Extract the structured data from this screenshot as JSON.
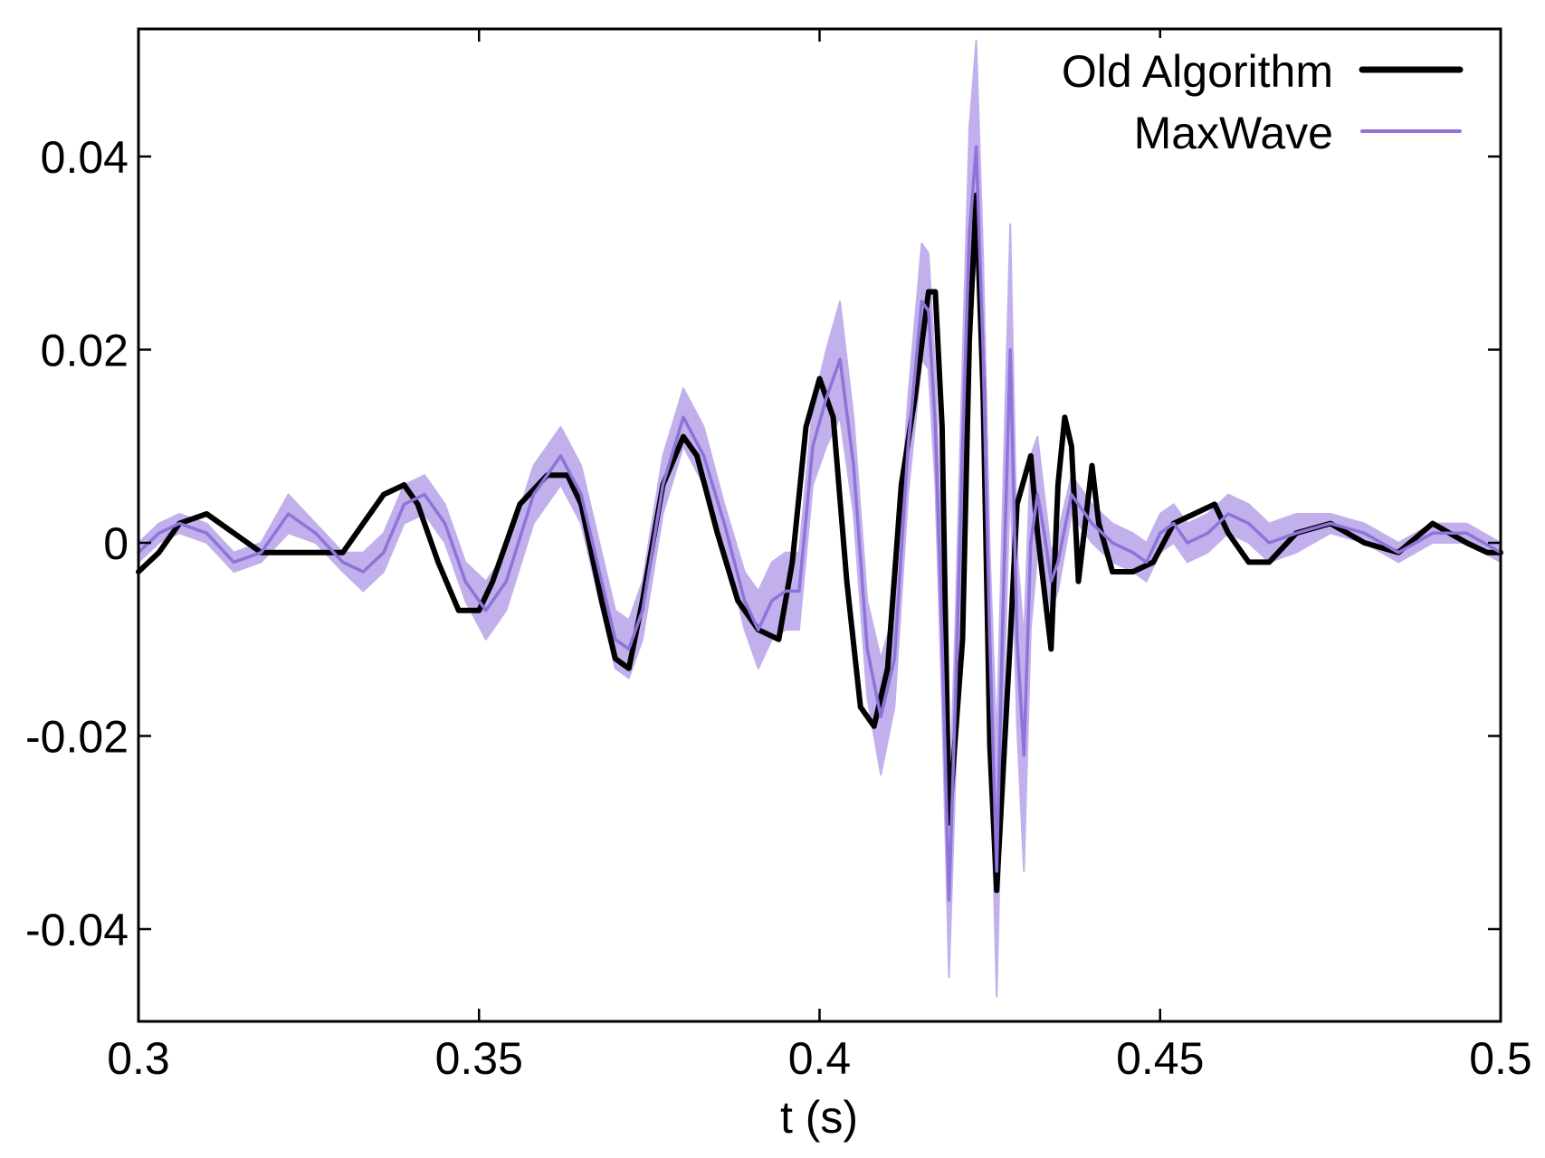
{
  "chart_data": {
    "type": "line",
    "title": "",
    "xlabel": "t (s)",
    "ylabel": "",
    "xlim": [
      0.3,
      0.5
    ],
    "ylim": [
      -0.05,
      0.052
    ],
    "xticks": [
      0.3,
      0.35,
      0.4,
      0.45,
      0.5
    ],
    "xtick_labels": [
      "0.3",
      "0.35",
      "0.4",
      "0.45",
      "0.5"
    ],
    "yticks": [
      -0.04,
      -0.02,
      0,
      0.02,
      0.04
    ],
    "ytick_labels": [
      "-0.04",
      "-0.02",
      "0",
      "0.02",
      "0.04"
    ],
    "grid": false,
    "legend_position": "top-right",
    "series": [
      {
        "name": "Old Algorithm",
        "color": "#000000",
        "style": "thick-line",
        "x": [
          0.3,
          0.303,
          0.306,
          0.31,
          0.314,
          0.318,
          0.322,
          0.326,
          0.33,
          0.333,
          0.336,
          0.339,
          0.341,
          0.344,
          0.347,
          0.35,
          0.352,
          0.356,
          0.36,
          0.363,
          0.365,
          0.368,
          0.37,
          0.372,
          0.374,
          0.377,
          0.38,
          0.382,
          0.385,
          0.388,
          0.391,
          0.394,
          0.396,
          0.398,
          0.4,
          0.402,
          0.404,
          0.406,
          0.408,
          0.41,
          0.412,
          0.414,
          0.416,
          0.417,
          0.418,
          0.419,
          0.421,
          0.422,
          0.423,
          0.424,
          0.425,
          0.426,
          0.428,
          0.429,
          0.431,
          0.432,
          0.434,
          0.435,
          0.436,
          0.437,
          0.438,
          0.44,
          0.441,
          0.443,
          0.446,
          0.449,
          0.452,
          0.455,
          0.458,
          0.46,
          0.463,
          0.466,
          0.47,
          0.475,
          0.48,
          0.485,
          0.49,
          0.495,
          0.498,
          0.5
        ],
        "y": [
          -0.003,
          -0.001,
          0.002,
          0.003,
          0.001,
          -0.001,
          -0.001,
          -0.001,
          -0.001,
          0.002,
          0.005,
          0.006,
          0.004,
          -0.002,
          -0.007,
          -0.007,
          -0.004,
          0.004,
          0.007,
          0.007,
          0.004,
          -0.006,
          -0.012,
          -0.013,
          -0.006,
          0.006,
          0.011,
          0.009,
          0.001,
          -0.006,
          -0.009,
          -0.01,
          -0.002,
          0.012,
          0.017,
          0.013,
          -0.004,
          -0.017,
          -0.019,
          -0.013,
          0.006,
          0.015,
          0.026,
          0.026,
          0.012,
          -0.029,
          -0.01,
          0.021,
          0.036,
          0.016,
          -0.021,
          -0.036,
          -0.01,
          0.004,
          0.009,
          0.001,
          -0.011,
          0.006,
          0.013,
          0.01,
          -0.004,
          0.008,
          0.002,
          -0.003,
          -0.003,
          -0.002,
          0.002,
          0.003,
          0.004,
          0.001,
          -0.002,
          -0.002,
          0.001,
          0.002,
          0.0,
          -0.001,
          0.002,
          0.0,
          -0.001,
          -0.001
        ]
      },
      {
        "name": "MaxWave",
        "color": "#8f73d9",
        "band_color": "#c1b0ec",
        "style": "thin-line-with-band",
        "x": [
          0.3,
          0.303,
          0.306,
          0.31,
          0.314,
          0.318,
          0.322,
          0.326,
          0.33,
          0.333,
          0.336,
          0.339,
          0.342,
          0.345,
          0.348,
          0.351,
          0.354,
          0.358,
          0.362,
          0.365,
          0.368,
          0.37,
          0.372,
          0.374,
          0.377,
          0.38,
          0.383,
          0.386,
          0.389,
          0.391,
          0.393,
          0.395,
          0.397,
          0.399,
          0.401,
          0.403,
          0.405,
          0.407,
          0.409,
          0.411,
          0.413,
          0.415,
          0.416,
          0.417,
          0.418,
          0.419,
          0.42,
          0.421,
          0.422,
          0.423,
          0.424,
          0.425,
          0.426,
          0.427,
          0.428,
          0.429,
          0.43,
          0.431,
          0.432,
          0.433,
          0.434,
          0.435,
          0.437,
          0.44,
          0.443,
          0.446,
          0.448,
          0.45,
          0.452,
          0.454,
          0.457,
          0.46,
          0.463,
          0.466,
          0.47,
          0.475,
          0.48,
          0.485,
          0.49,
          0.495,
          0.5
        ],
        "y": [
          -0.001,
          0.001,
          0.002,
          0.001,
          -0.002,
          -0.001,
          0.003,
          0.001,
          -0.002,
          -0.003,
          -0.001,
          0.004,
          0.005,
          0.002,
          -0.004,
          -0.007,
          -0.004,
          0.005,
          0.009,
          0.005,
          -0.004,
          -0.01,
          -0.011,
          -0.007,
          0.006,
          0.013,
          0.009,
          0.002,
          -0.006,
          -0.009,
          -0.006,
          -0.005,
          -0.005,
          0.01,
          0.015,
          0.019,
          0.008,
          -0.011,
          -0.018,
          -0.012,
          0.01,
          0.025,
          0.024,
          0.012,
          -0.01,
          -0.037,
          -0.015,
          0.01,
          0.032,
          0.041,
          0.02,
          -0.01,
          -0.034,
          -0.005,
          0.02,
          -0.01,
          -0.022,
          0.0,
          0.005,
          0.001,
          -0.004,
          -0.002,
          0.005,
          0.002,
          0.0,
          -0.001,
          -0.002,
          0.001,
          0.002,
          0.0,
          0.001,
          0.003,
          0.002,
          0.0,
          0.001,
          0.002,
          0.001,
          -0.001,
          0.001,
          0.001,
          -0.001
        ],
        "band_half_width": [
          0.001,
          0.001,
          0.001,
          0.001,
          0.001,
          0.001,
          0.002,
          0.001,
          0.001,
          0.002,
          0.002,
          0.002,
          0.002,
          0.002,
          0.002,
          0.003,
          0.003,
          0.003,
          0.003,
          0.003,
          0.003,
          0.003,
          0.003,
          0.003,
          0.003,
          0.003,
          0.003,
          0.002,
          0.003,
          0.004,
          0.004,
          0.004,
          0.004,
          0.004,
          0.005,
          0.006,
          0.005,
          0.005,
          0.006,
          0.005,
          0.005,
          0.006,
          0.006,
          0.006,
          0.007,
          0.008,
          0.008,
          0.009,
          0.011,
          0.011,
          0.01,
          0.009,
          0.013,
          0.012,
          0.013,
          0.009,
          0.012,
          0.009,
          0.006,
          0.004,
          0.003,
          0.003,
          0.002,
          0.002,
          0.002,
          0.002,
          0.002,
          0.002,
          0.002,
          0.002,
          0.002,
          0.002,
          0.002,
          0.002,
          0.002,
          0.001,
          0.001,
          0.001,
          0.001,
          0.001,
          0.001
        ]
      }
    ]
  }
}
